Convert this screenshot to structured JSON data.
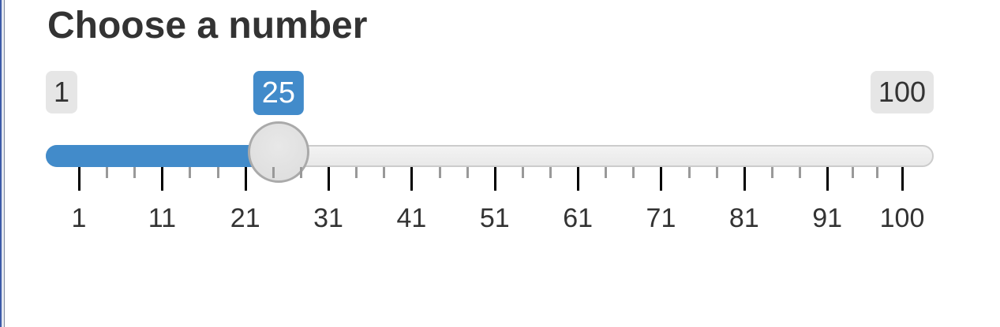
{
  "input": {
    "label": "Choose a number",
    "min": 1,
    "max": 100,
    "value": 25,
    "min_label": "1",
    "max_label": "100",
    "value_label": "25",
    "accent_color": "#428bca",
    "tick_labels": [
      "1",
      "11",
      "21",
      "31",
      "41",
      "51",
      "61",
      "71",
      "81",
      "91",
      "100"
    ]
  }
}
